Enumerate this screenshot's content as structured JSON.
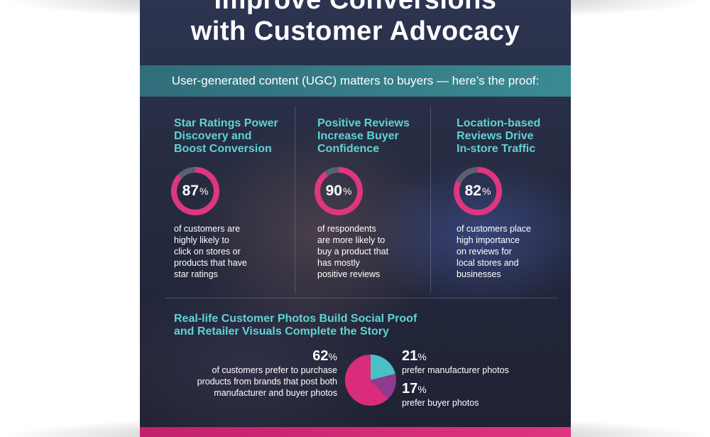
{
  "title_line1": "Improve Conversions",
  "title_line2": "with Customer Advocacy",
  "subtitle": "User-generated content (UGC) matters to buyers — here’s the proof:",
  "stats": [
    {
      "heading": [
        "Star Ratings Power",
        "Discovery and",
        "Boost Conversion"
      ],
      "value": "87",
      "unit": "%",
      "text": [
        "of customers are",
        "highly likely to",
        "click on stores or",
        "products that have",
        "star ratings"
      ]
    },
    {
      "heading": [
        "Positive Reviews",
        "Increase Buyer",
        "Confidence"
      ],
      "value": "90",
      "unit": "%",
      "text": [
        "of respondents",
        "are more likely to",
        "buy a product that",
        "has mostly",
        "positive reviews"
      ]
    },
    {
      "heading": [
        "Location-based",
        "Reviews Drive",
        "In-store Traffic"
      ],
      "value": "82",
      "unit": "%",
      "text": [
        "of customers place",
        "high importance",
        "on reviews for",
        "local stores and",
        "businesses"
      ]
    }
  ],
  "photos_section": {
    "heading": [
      "Real-life Customer Photos Build Social Proof",
      "and Retailer Visuals Complete the Story"
    ],
    "left_value": "62",
    "left_text": [
      "of customers prefer to purchase",
      "products from brands that post both",
      "manufacturer and buyer photos"
    ],
    "right": [
      {
        "value": "21",
        "text": "prefer manufacturer photos"
      },
      {
        "value": "17",
        "text": "prefer buyer photos"
      }
    ],
    "unit": "%"
  },
  "colors": {
    "accent_teal": "#5fd3d3",
    "accent_pink": "#e0357f",
    "ring_track": "#5a5f72",
    "pie_pink": "#d92c7c",
    "pie_teal": "#49c1c4",
    "pie_purple": "#8e3a8e"
  },
  "chart_data": [
    {
      "type": "pie",
      "title": "",
      "categories": [
        "Star Ratings Power Discovery and Boost Conversion",
        ""
      ],
      "values": [
        87,
        13
      ]
    },
    {
      "type": "pie",
      "title": "",
      "categories": [
        "Positive Reviews Increase Buyer Confidence",
        ""
      ],
      "values": [
        90,
        10
      ]
    },
    {
      "type": "pie",
      "title": "",
      "categories": [
        "Location-based Reviews Drive In-store Traffic",
        ""
      ],
      "values": [
        82,
        18
      ]
    },
    {
      "type": "pie",
      "title": "",
      "categories": [
        "of customers prefer to purchase products from brands that post both manufacturer and buyer photos",
        "prefer manufacturer photos",
        "prefer buyer photos"
      ],
      "values": [
        62,
        21,
        17
      ]
    }
  ]
}
